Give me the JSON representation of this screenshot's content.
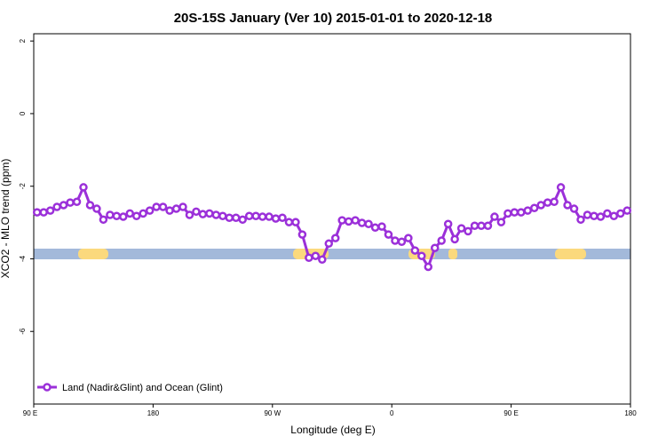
{
  "chart_data": {
    "type": "line",
    "title": "20S-15S January (Ver 10)   2015-01-01 to 2020-12-18",
    "x_label": "Longitude (deg E)",
    "y_label": "XCO2 - MLO trend (ppm)",
    "xlim": [
      90,
      540
    ],
    "ylim": [
      -8,
      2.2
    ],
    "xticks": [
      {
        "value": 90,
        "label": "90 E"
      },
      180,
      {
        "value": 270,
        "label": "90 W"
      },
      {
        "value": 360,
        "label": "0"
      },
      {
        "value": 450,
        "label": "90 E"
      },
      {
        "value": 540,
        "label": "180"
      }
    ],
    "yticks": [
      2,
      0,
      -2,
      -4,
      -6
    ],
    "legend": "bottom-left",
    "x": [
      92.5,
      97.5,
      102.5,
      107.5,
      112.5,
      117.5,
      122.5,
      127.5,
      132.5,
      137.5,
      142.5,
      147.5,
      152.5,
      157.5,
      162.5,
      167.5,
      172.5,
      177.5,
      182.5,
      187.5,
      192.5,
      197.5,
      202.5,
      207.5,
      212.5,
      217.5,
      222.5,
      227.5,
      232.5,
      237.5,
      242.5,
      247.5,
      252.5,
      257.5,
      262.5,
      267.5,
      272.5,
      277.5,
      282.5,
      287.5,
      292.5,
      297.5,
      302.5,
      307.5,
      312.5,
      317.5,
      322.5,
      327.5,
      332.5,
      337.5,
      342.5,
      347.5,
      352.5,
      357.5,
      362.5,
      367.5,
      372.5,
      377.5,
      382.5,
      387.5,
      392.5,
      397.5,
      402.5,
      407.5,
      412.5,
      417.5,
      422.5,
      427.5,
      432.5,
      437.5,
      442.5,
      447.5,
      452.5,
      457.5,
      462.5,
      467.5,
      472.5,
      477.5,
      482.5,
      487.5,
      492.5,
      497.5,
      502.5,
      507.5,
      512.5,
      517.5,
      522.5,
      527.5,
      532.5,
      537.5
    ],
    "series": [
      {
        "name": "Land (Nadir&Glint) and Ocean (Glint)",
        "color": "#9b30d9",
        "values": [
          -2.72,
          -2.72,
          -2.67,
          -2.57,
          -2.52,
          -2.45,
          -2.43,
          -2.03,
          -2.52,
          -2.62,
          -2.92,
          -2.79,
          -2.82,
          -2.84,
          -2.75,
          -2.82,
          -2.75,
          -2.67,
          -2.57,
          -2.57,
          -2.67,
          -2.62,
          -2.57,
          -2.79,
          -2.7,
          -2.77,
          -2.75,
          -2.79,
          -2.82,
          -2.87,
          -2.87,
          -2.92,
          -2.82,
          -2.82,
          -2.84,
          -2.84,
          -2.89,
          -2.87,
          -2.99,
          -2.99,
          -3.33,
          -3.97,
          -3.92,
          -4.02,
          -3.58,
          -3.43,
          -2.94,
          -2.97,
          -2.94,
          -3.01,
          -3.04,
          -3.14,
          -3.11,
          -3.33,
          -3.5,
          -3.53,
          -3.43,
          -3.77,
          -3.92,
          -4.22,
          -3.7,
          -3.5,
          -3.04,
          -3.46,
          -3.16,
          -3.24,
          -3.09,
          -3.09,
          -3.09,
          -2.84,
          -2.99,
          -2.75,
          -2.72,
          -2.72,
          -2.67,
          -2.6,
          -2.52,
          -2.45,
          -2.43,
          -2.03,
          -2.52,
          -2.62,
          -2.92,
          -2.79,
          -2.82,
          -2.84,
          -2.75,
          -2.82,
          -2.75,
          -2.67
        ]
      }
    ]
  }
}
